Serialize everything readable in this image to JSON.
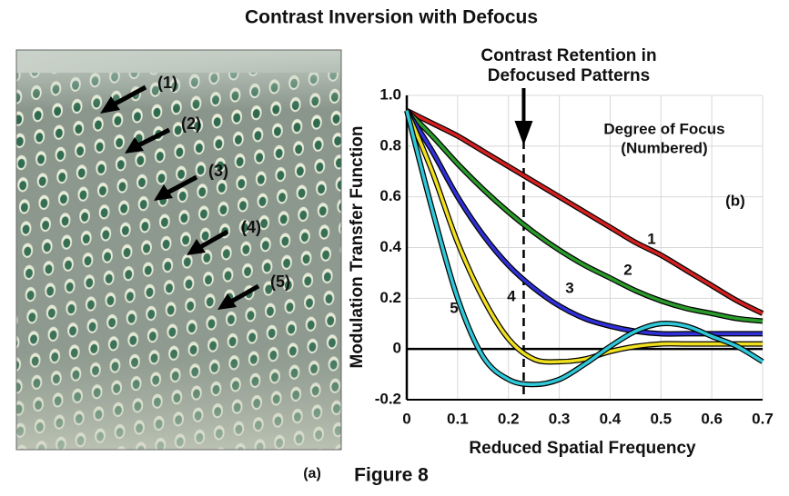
{
  "title": "Contrast Inversion with Defocus",
  "photo": {
    "label": "(a)",
    "arrow_labels": [
      "(1)",
      "(2)",
      "(3)",
      "(4)",
      "(5)"
    ]
  },
  "caption": "Figure 8",
  "chart_data": {
    "type": "line",
    "title": [
      "Contrast Retention in",
      "Defocused Patterns"
    ],
    "annotation": [
      "Degree of Focus",
      "(Numbered)"
    ],
    "panel_label": "(b)",
    "x_label": "Reduced Spatial Frequency",
    "y_label": "Modulation Transfer Function",
    "x": [
      0,
      0.05,
      0.1,
      0.15,
      0.2,
      0.25,
      0.3,
      0.35,
      0.4,
      0.45,
      0.5,
      0.55,
      0.6,
      0.65,
      0.7
    ],
    "series": [
      {
        "name": "1",
        "color": "#d42020",
        "values": [
          0.94,
          0.89,
          0.84,
          0.78,
          0.72,
          0.66,
          0.6,
          0.54,
          0.48,
          0.42,
          0.37,
          0.31,
          0.25,
          0.19,
          0.14
        ]
      },
      {
        "name": "2",
        "color": "#2a9a2a",
        "values": [
          0.94,
          0.84,
          0.73,
          0.63,
          0.54,
          0.46,
          0.39,
          0.33,
          0.28,
          0.23,
          0.19,
          0.16,
          0.14,
          0.12,
          0.11
        ]
      },
      {
        "name": "3",
        "color": "#3030d8",
        "values": [
          0.94,
          0.78,
          0.6,
          0.45,
          0.33,
          0.24,
          0.17,
          0.12,
          0.09,
          0.07,
          0.06,
          0.06,
          0.06,
          0.06,
          0.06
        ]
      },
      {
        "name": "4",
        "color": "#f0e020",
        "values": [
          0.94,
          0.7,
          0.42,
          0.2,
          0.04,
          -0.04,
          -0.05,
          -0.04,
          -0.01,
          0.01,
          0.02,
          0.02,
          0.02,
          0.02,
          0.02
        ]
      },
      {
        "name": "5",
        "color": "#30c8d8",
        "values": [
          0.94,
          0.55,
          0.2,
          -0.03,
          -0.12,
          -0.14,
          -0.12,
          -0.06,
          0.01,
          0.07,
          0.1,
          0.09,
          0.05,
          0.01,
          -0.05
        ]
      }
    ],
    "marker_x": 0.23,
    "xlim": [
      0,
      0.7
    ],
    "xticks": [
      0,
      0.1,
      0.2,
      0.3,
      0.4,
      0.5,
      0.6,
      0.7
    ],
    "ylim": [
      -0.2,
      1
    ],
    "yticks": [
      -0.2,
      0,
      0.2,
      0.4,
      0.6,
      0.8,
      {
        "value": 1,
        "label": "1.0"
      }
    ],
    "grid": true
  }
}
